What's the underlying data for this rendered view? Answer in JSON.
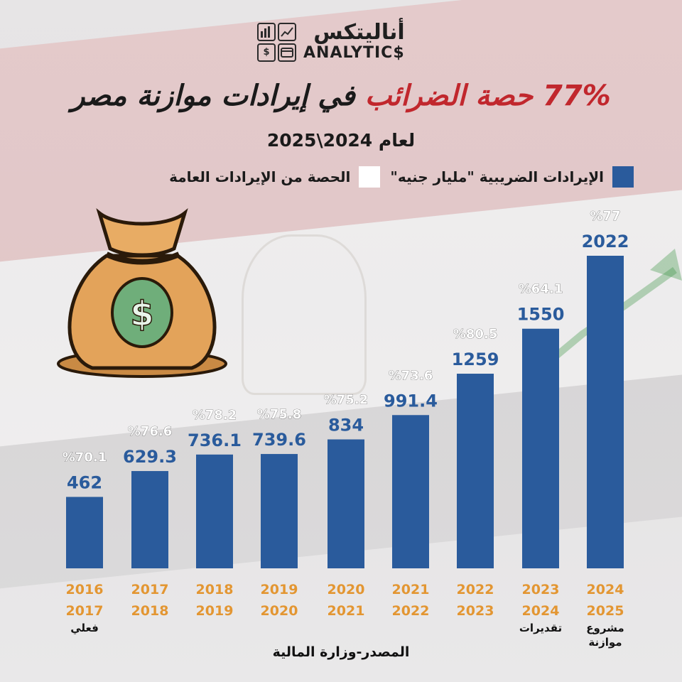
{
  "logo": {
    "ar": "أناليتكس",
    "en": "ANALYTIC$",
    "icons": [
      "bar-chart-icon",
      "trend-line-icon",
      "dollar-icon",
      "credit-card-icon"
    ]
  },
  "title": {
    "accent": "77% حصة الضرائب",
    "rest": " في إيرادات موازنة مصر"
  },
  "subtitle": "لعام 2024\\2025",
  "legend": {
    "tax": "الإيرادات الضريبية \"مليار جنيه\"",
    "share": "الحصة من الإيرادات العامة"
  },
  "colors": {
    "bar": "#2a5b9c",
    "accent": "#c1272d",
    "year": "#e39632",
    "share_swatch": "#ffffff"
  },
  "chart_data": {
    "type": "bar",
    "categories": [
      [
        "2016",
        "2017"
      ],
      [
        "2017",
        "2018"
      ],
      [
        "2018",
        "2019"
      ],
      [
        "2019",
        "2020"
      ],
      [
        "2020",
        "2021"
      ],
      [
        "2021",
        "2022"
      ],
      [
        "2022",
        "2023"
      ],
      [
        "2023",
        "2024"
      ],
      [
        "2024",
        "2025"
      ]
    ],
    "notes": [
      "فعلي",
      "",
      "",
      "",
      "",
      "",
      "",
      "تقديرات",
      "مشروع\nموازنة"
    ],
    "series": [
      {
        "name": "الإيرادات الضريبية \"مليار جنيه\"",
        "values": [
          462,
          629.3,
          736.1,
          739.6,
          834,
          991.4,
          1259,
          1550,
          2022
        ]
      },
      {
        "name": "الحصة من الإيرادات العامة",
        "values": [
          70.1,
          76.6,
          78.2,
          75.8,
          75.2,
          73.6,
          80.5,
          64.1,
          77
        ]
      }
    ],
    "value_labels": [
      "462",
      "629.3",
      "736.1",
      "739.6",
      "834",
      "991.4",
      "1259",
      "1550",
      "2022"
    ],
    "share_labels": [
      "%70.1",
      "%76.6",
      "%78.2",
      "%75.8",
      "%75.2",
      "%73.6",
      "%80.5",
      "%64.1",
      "%77"
    ],
    "ylim": [
      0,
      2022
    ],
    "grid": false,
    "legend_position": "top"
  },
  "source": "المصدر-وزارة المالية"
}
